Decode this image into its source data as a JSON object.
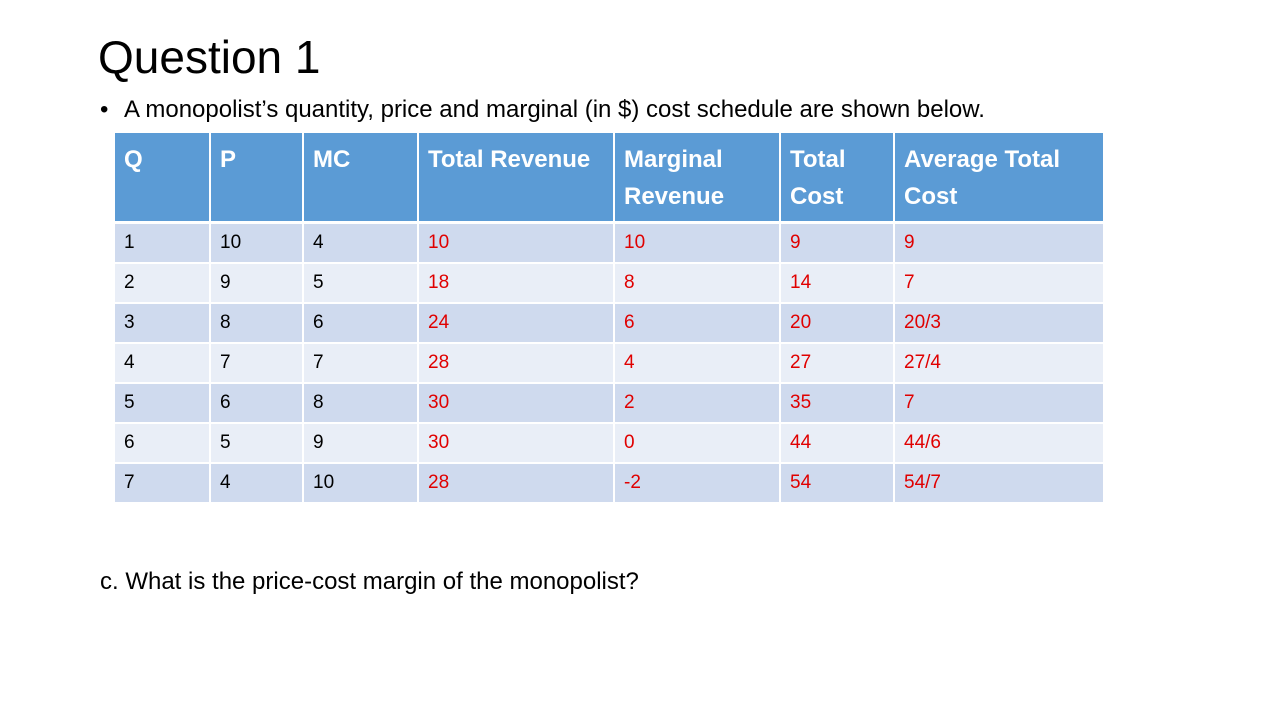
{
  "slide": {
    "title": "Question 1",
    "bullet": "A monopolist’s quantity, price and marginal (in $) cost schedule are shown below.",
    "bullet_symbol": "•",
    "question_c": "c. What is the price-cost margin of the monopolist?"
  },
  "table": {
    "headers": [
      "Q",
      "P",
      "MC",
      "Total Revenue",
      "Marginal Revenue",
      "Total Cost",
      "Average Total Cost"
    ],
    "rows": [
      [
        "1",
        "10",
        "4",
        "10",
        "10",
        "9",
        "9"
      ],
      [
        "2",
        "9",
        "5",
        "18",
        "8",
        "14",
        "7"
      ],
      [
        "3",
        "8",
        "6",
        "24",
        "6",
        "20",
        "20/3"
      ],
      [
        "4",
        "7",
        "7",
        "28",
        "4",
        "27",
        "27/4"
      ],
      [
        "5",
        "6",
        "8",
        "30",
        "2",
        "35",
        "7"
      ],
      [
        "6",
        "5",
        "9",
        "30",
        "0",
        "44",
        "44/6"
      ],
      [
        "7",
        "4",
        "10",
        "28",
        "-2",
        "54",
        "54/7"
      ]
    ]
  },
  "colors": {
    "header_bg": "#5b9bd5",
    "row_band_dark": "#cfdaee",
    "row_band_light": "#e9eef7",
    "answer_text": "#e00000"
  }
}
